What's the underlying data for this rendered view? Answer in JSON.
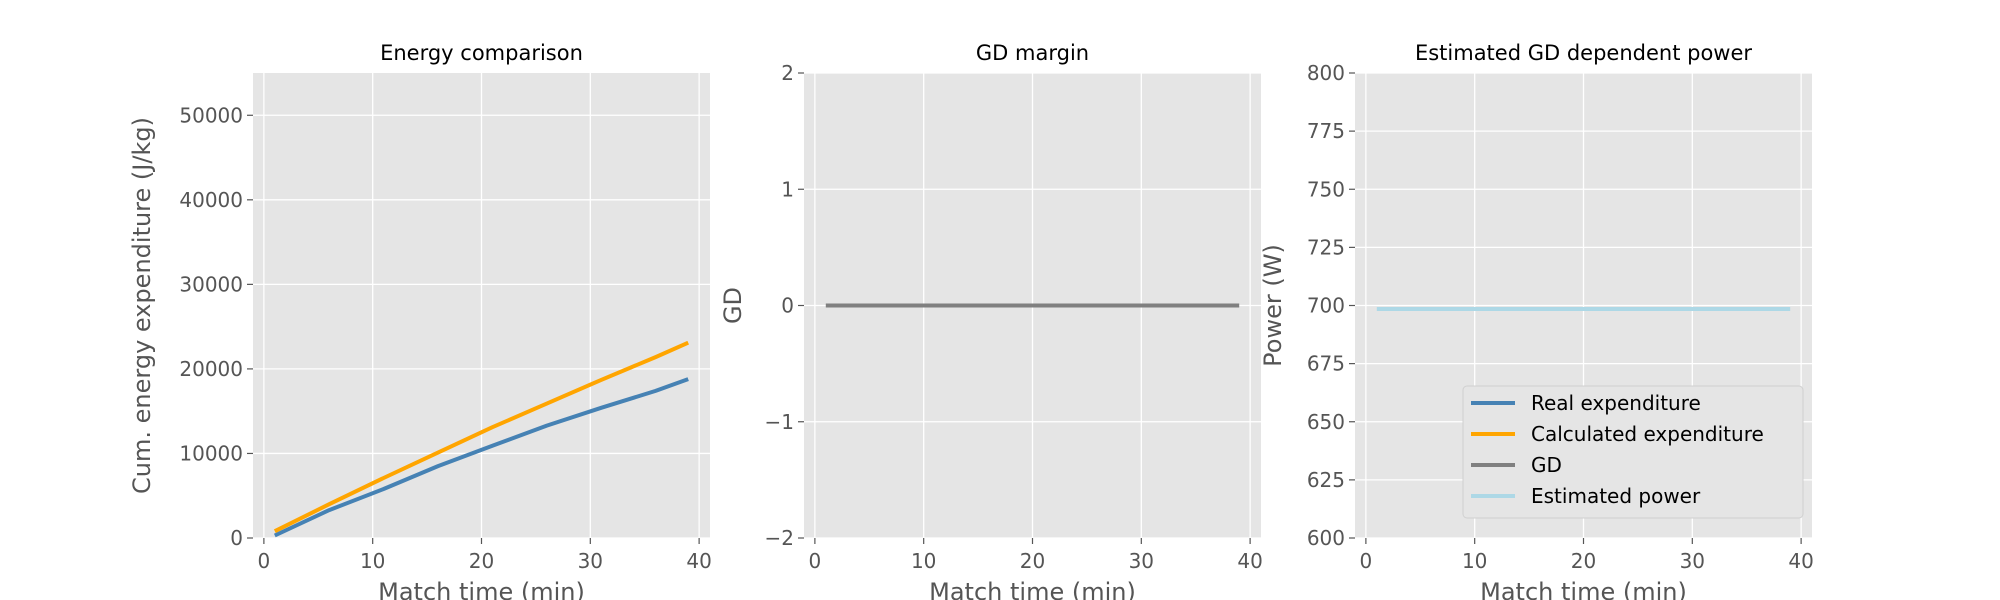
{
  "colors": {
    "panel_bg": "#e5e5e5",
    "grid": "#ffffff",
    "tick_text": "#555555",
    "title_text": "#000000",
    "real_expenditure": "#4682b4",
    "calculated_expenditure": "#ffa500",
    "gd": "#808080",
    "estimated_power": "#add8e6"
  },
  "legend": {
    "placement": "lower right of third panel",
    "entries": [
      {
        "label": "Real expenditure",
        "color_key": "real_expenditure"
      },
      {
        "label": "Calculated expenditure",
        "color_key": "calculated_expenditure"
      },
      {
        "label": "GD",
        "color_key": "gd"
      },
      {
        "label": "Estimated power",
        "color_key": "estimated_power"
      }
    ]
  },
  "chart_data": [
    {
      "type": "line",
      "title": "Energy comparison",
      "xlabel": "Match time (min)",
      "ylabel": "Cum. energy expenditure (J/kg)",
      "xlim": [
        -1,
        41
      ],
      "ylim": [
        0,
        55000
      ],
      "xticks": [
        0,
        10,
        20,
        30,
        40
      ],
      "xtick_labels": [
        "0",
        "10",
        "20",
        "30",
        "40"
      ],
      "yticks": [
        0,
        10000,
        20000,
        30000,
        40000,
        50000
      ],
      "ytick_labels": [
        "0",
        "10000",
        "20000",
        "30000",
        "40000",
        "50000"
      ],
      "grid": true,
      "series": [
        {
          "name": "Real expenditure",
          "color_key": "real_expenditure",
          "x": [
            1,
            6,
            11,
            16,
            21,
            26,
            31,
            36,
            39
          ],
          "y": [
            300,
            3300,
            5800,
            8500,
            10900,
            13300,
            15400,
            17400,
            18800
          ]
        },
        {
          "name": "Calculated expenditure",
          "color_key": "calculated_expenditure",
          "x": [
            1,
            6,
            11,
            16,
            21,
            26,
            31,
            36,
            39
          ],
          "y": [
            800,
            4000,
            7100,
            10100,
            13100,
            15900,
            18700,
            21400,
            23100
          ]
        }
      ]
    },
    {
      "type": "line",
      "title": "GD margin",
      "xlabel": "Match time (min)",
      "ylabel": "GD",
      "xlim": [
        -1,
        41
      ],
      "ylim": [
        -2,
        2
      ],
      "xticks": [
        0,
        10,
        20,
        30,
        40
      ],
      "xtick_labels": [
        "0",
        "10",
        "20",
        "30",
        "40"
      ],
      "yticks": [
        -2,
        -1,
        0,
        1,
        2
      ],
      "ytick_labels": [
        "−2",
        "−1",
        "0",
        "1",
        "2"
      ],
      "grid": true,
      "series": [
        {
          "name": "GD",
          "color_key": "gd",
          "x": [
            1,
            39
          ],
          "y": [
            0,
            0
          ]
        }
      ]
    },
    {
      "type": "line",
      "title": "Estimated GD dependent power",
      "xlabel": "Match time (min)",
      "ylabel": "Power (W)",
      "xlim": [
        -1,
        41
      ],
      "ylim": [
        600,
        800
      ],
      "xticks": [
        0,
        10,
        20,
        30,
        40
      ],
      "xtick_labels": [
        "0",
        "10",
        "20",
        "30",
        "40"
      ],
      "yticks": [
        600,
        625,
        650,
        675,
        700,
        725,
        750,
        775,
        800
      ],
      "ytick_labels": [
        "600",
        "625",
        "650",
        "675",
        "700",
        "725",
        "750",
        "775",
        "800"
      ],
      "grid": true,
      "series": [
        {
          "name": "Estimated power",
          "color_key": "estimated_power",
          "x": [
            1,
            39
          ],
          "y": [
            698.5,
            698.5
          ]
        }
      ]
    }
  ]
}
